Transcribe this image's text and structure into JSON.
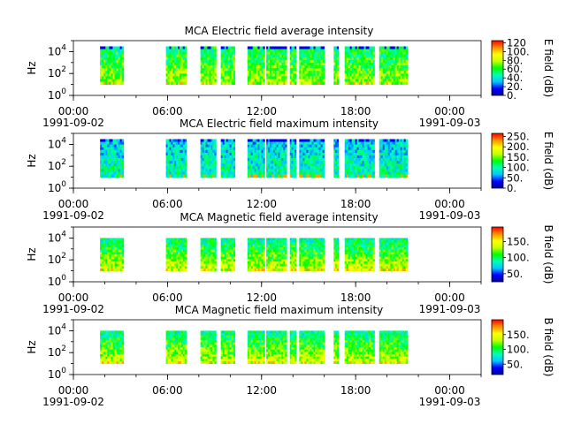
{
  "colors": {
    "background": "#ffffff",
    "axis": "#000000",
    "colormap": [
      "#0000a0",
      "#0000ff",
      "#00c8ff",
      "#00ffb4",
      "#00ff00",
      "#c8ff00",
      "#ffff00",
      "#ff8c00",
      "#ff0000"
    ]
  },
  "chart_data": [
    {
      "type": "heatmap",
      "title": "MCA  Electric field average intensity",
      "ylabel": "Hz",
      "yscale": "log",
      "ylim": [
        1,
        100000
      ],
      "yticks": [
        {
          "exp": "0",
          "value": 1
        },
        {
          "exp": "2",
          "value": 100
        },
        {
          "exp": "4",
          "value": 10000
        }
      ],
      "xlim": [
        "1991-09-02T00:00",
        "1991-09-03T02:00"
      ],
      "xticks": [
        {
          "time": "00:00",
          "date": "1991-09-02"
        },
        {
          "time": "06:00",
          "date": ""
        },
        {
          "time": "12:00",
          "date": ""
        },
        {
          "time": "18:00",
          "date": ""
        },
        {
          "time": "00:00",
          "date": "1991-09-03"
        }
      ],
      "colorbar": {
        "label": "E field (dB)",
        "range": [
          0,
          125
        ],
        "ticks": [
          "0.",
          "20.",
          "40.",
          "60.",
          "80.",
          "100.",
          "120"
        ]
      },
      "data_intervals_hours": [
        [
          1.7,
          3.2
        ],
        [
          5.9,
          7.2
        ],
        [
          8.1,
          9.1
        ],
        [
          9.4,
          10.3
        ],
        [
          11.1,
          12.2
        ],
        [
          12.3,
          13.6
        ],
        [
          13.8,
          14.2
        ],
        [
          14.4,
          16.0
        ],
        [
          16.6,
          16.9
        ],
        [
          17.3,
          19.2
        ],
        [
          19.5,
          21.3
        ]
      ],
      "freq_range_hz": [
        10,
        30000
      ]
    },
    {
      "type": "heatmap",
      "title": "MCA  Electric field maximum intensity",
      "ylabel": "Hz",
      "yscale": "log",
      "ylim": [
        1,
        100000
      ],
      "yticks": [
        {
          "exp": "0",
          "value": 1
        },
        {
          "exp": "2",
          "value": 100
        },
        {
          "exp": "4",
          "value": 10000
        }
      ],
      "xlim": [
        "1991-09-02T00:00",
        "1991-09-03T02:00"
      ],
      "xticks": [
        {
          "time": "00:00",
          "date": "1991-09-02"
        },
        {
          "time": "06:00",
          "date": ""
        },
        {
          "time": "12:00",
          "date": ""
        },
        {
          "time": "18:00",
          "date": ""
        },
        {
          "time": "00:00",
          "date": "1991-09-03"
        }
      ],
      "colorbar": {
        "label": "E field (dB)",
        "range": [
          0,
          265
        ],
        "ticks": [
          "0.",
          "50.",
          "100.",
          "150.",
          "200.",
          "250."
        ]
      },
      "data_intervals_hours": [
        [
          1.7,
          3.2
        ],
        [
          5.9,
          7.2
        ],
        [
          8.1,
          9.1
        ],
        [
          9.4,
          10.3
        ],
        [
          11.1,
          12.2
        ],
        [
          12.3,
          13.6
        ],
        [
          13.8,
          14.2
        ],
        [
          14.4,
          16.0
        ],
        [
          16.6,
          16.9
        ],
        [
          17.3,
          19.2
        ],
        [
          19.5,
          21.3
        ]
      ],
      "freq_range_hz": [
        10,
        30000
      ]
    },
    {
      "type": "heatmap",
      "title": "MCA  Magnetic field average intensity",
      "ylabel": "Hz",
      "yscale": "log",
      "ylim": [
        1,
        100000
      ],
      "yticks": [
        {
          "exp": "0",
          "value": 1
        },
        {
          "exp": "2",
          "value": 100
        },
        {
          "exp": "4",
          "value": 10000
        }
      ],
      "xlim": [
        "1991-09-02T00:00",
        "1991-09-03T02:00"
      ],
      "xticks": [
        {
          "time": "00:00",
          "date": "1991-09-02"
        },
        {
          "time": "06:00",
          "date": ""
        },
        {
          "time": "12:00",
          "date": ""
        },
        {
          "time": "18:00",
          "date": ""
        },
        {
          "time": "00:00",
          "date": "1991-09-03"
        }
      ],
      "colorbar": {
        "label": "B field (dB)",
        "range": [
          25,
          195
        ],
        "ticks": [
          "50.",
          "100.",
          "150."
        ]
      },
      "data_intervals_hours": [
        [
          1.7,
          3.2
        ],
        [
          5.9,
          7.2
        ],
        [
          8.1,
          9.1
        ],
        [
          9.4,
          10.3
        ],
        [
          11.1,
          12.2
        ],
        [
          12.3,
          13.6
        ],
        [
          13.8,
          14.2
        ],
        [
          14.4,
          16.0
        ],
        [
          16.6,
          16.9
        ],
        [
          17.3,
          19.2
        ],
        [
          19.5,
          21.3
        ]
      ],
      "freq_range_hz": [
        10,
        10000
      ]
    },
    {
      "type": "heatmap",
      "title": "MCA  Magnetic field maximum intensity",
      "ylabel": "Hz",
      "yscale": "log",
      "ylim": [
        1,
        100000
      ],
      "yticks": [
        {
          "exp": "0",
          "value": 1
        },
        {
          "exp": "2",
          "value": 100
        },
        {
          "exp": "4",
          "value": 10000
        }
      ],
      "xlim": [
        "1991-09-02T00:00",
        "1991-09-03T02:00"
      ],
      "xticks": [
        {
          "time": "00:00",
          "date": "1991-09-02"
        },
        {
          "time": "06:00",
          "date": ""
        },
        {
          "time": "12:00",
          "date": ""
        },
        {
          "time": "18:00",
          "date": ""
        },
        {
          "time": "00:00",
          "date": "1991-09-03"
        }
      ],
      "colorbar": {
        "label": "B field (dB)",
        "range": [
          15,
          200
        ],
        "ticks": [
          "50.",
          "100.",
          "150."
        ]
      },
      "data_intervals_hours": [
        [
          1.7,
          3.2
        ],
        [
          5.9,
          7.2
        ],
        [
          8.1,
          9.1
        ],
        [
          9.4,
          10.3
        ],
        [
          11.1,
          12.2
        ],
        [
          12.3,
          13.6
        ],
        [
          13.8,
          14.2
        ],
        [
          14.4,
          16.0
        ],
        [
          16.6,
          16.9
        ],
        [
          17.3,
          19.2
        ],
        [
          19.5,
          21.3
        ]
      ],
      "freq_range_hz": [
        10,
        10000
      ]
    }
  ]
}
